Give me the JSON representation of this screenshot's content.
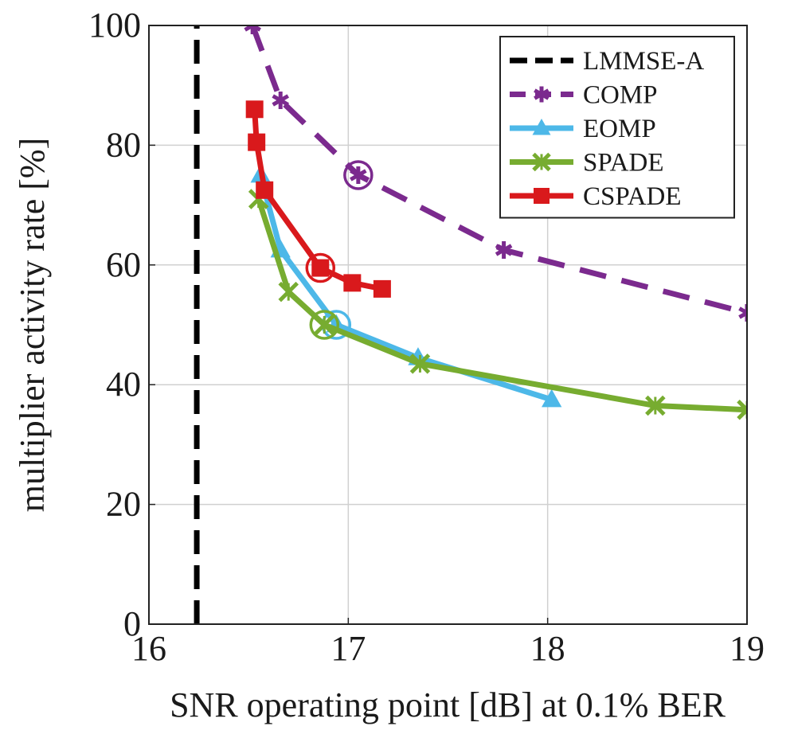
{
  "chart_data": {
    "type": "line",
    "xlabel": "SNR operating point [dB] at 0.1% BER",
    "ylabel": "multiplier activity rate [%]",
    "xlim": [
      16,
      19
    ],
    "ylim": [
      0,
      100
    ],
    "xticks": [
      16,
      17,
      18,
      19
    ],
    "yticks": [
      0,
      20,
      40,
      60,
      80,
      100
    ],
    "grid": true,
    "legend_position": "top-right",
    "series": [
      {
        "name": "LMMSE-A",
        "color": "#000000",
        "style": "dashed",
        "marker": "none",
        "points": [
          [
            16.24,
            0
          ],
          [
            16.24,
            100
          ]
        ]
      },
      {
        "name": "COMP",
        "color": "#7b2a8e",
        "style": "dashed",
        "marker": "star",
        "points": [
          [
            16.52,
            100
          ],
          [
            16.66,
            87.5
          ],
          [
            17.05,
            75
          ],
          [
            17.78,
            62.5
          ],
          [
            19.0,
            52
          ]
        ],
        "circled": [
          17.05,
          75
        ]
      },
      {
        "name": "EOMP",
        "color": "#4db8e8",
        "style": "solid",
        "marker": "triangle",
        "points": [
          [
            16.56,
            75
          ],
          [
            16.66,
            62.5
          ],
          [
            16.94,
            50
          ],
          [
            17.35,
            44.5
          ],
          [
            18.02,
            37.5
          ]
        ],
        "circled": [
          16.94,
          50
        ]
      },
      {
        "name": "SPADE",
        "color": "#77ac30",
        "style": "solid",
        "marker": "x",
        "points": [
          [
            16.55,
            71
          ],
          [
            16.7,
            55.5
          ],
          [
            16.88,
            50
          ],
          [
            17.36,
            43.5
          ],
          [
            18.54,
            36.5
          ],
          [
            19.0,
            35.8
          ]
        ],
        "circled": [
          16.88,
          50
        ]
      },
      {
        "name": "CSPADE",
        "color": "#d9191c",
        "style": "solid",
        "marker": "square",
        "points": [
          [
            16.53,
            86
          ],
          [
            16.54,
            80.5
          ],
          [
            16.58,
            72.5
          ],
          [
            16.86,
            59.5
          ],
          [
            17.02,
            57
          ],
          [
            17.17,
            56
          ]
        ],
        "circled": [
          16.86,
          59.5
        ]
      }
    ]
  }
}
